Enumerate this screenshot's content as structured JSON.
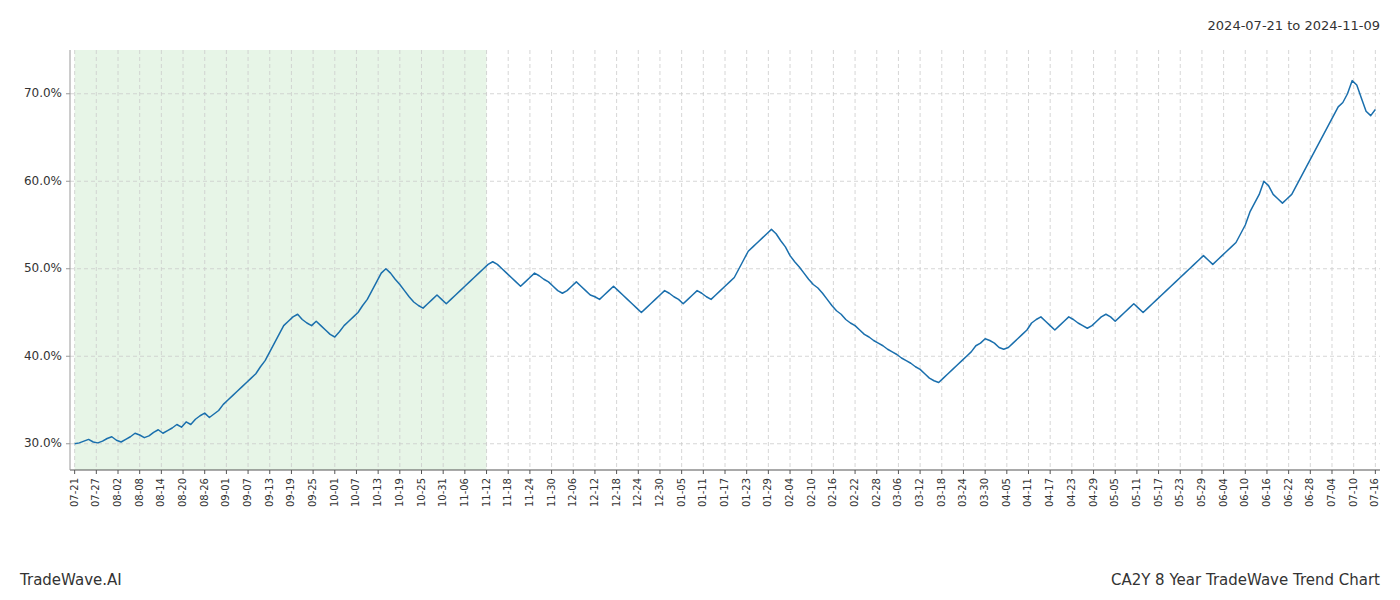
{
  "chart_data": {
    "type": "line",
    "title": "CA2Y 8 Year TradeWave Trend Chart",
    "subtitle": "2024-07-21 to 2024-11-09",
    "annotations": [
      "TradeWave.AI"
    ],
    "color": "#1a6fad",
    "grid": true,
    "shade": {
      "x": [
        0,
        88.66666666666667
      ],
      "color": "#d4ecd4"
    },
    "xlim": [
      -1,
      281
    ],
    "xticks": [
      {
        "value": 0,
        "label": "07-21"
      },
      {
        "value": 4.666666666666667,
        "label": "07-27"
      },
      {
        "value": 9.333333333333334,
        "label": "08-02"
      },
      {
        "value": 14,
        "label": "08-08"
      },
      {
        "value": 18.666666666666668,
        "label": "08-14"
      },
      {
        "value": 23.333333333333332,
        "label": "08-20"
      },
      {
        "value": 28,
        "label": "08-26"
      },
      {
        "value": 32.666666666666664,
        "label": "09-01"
      },
      {
        "value": 37.333333333333336,
        "label": "09-07"
      },
      {
        "value": 42,
        "label": "09-13"
      },
      {
        "value": 46.666666666666664,
        "label": "09-19"
      },
      {
        "value": 51.333333333333336,
        "label": "09-25"
      },
      {
        "value": 56,
        "label": "10-01"
      },
      {
        "value": 60.666666666666664,
        "label": "10-07"
      },
      {
        "value": 65.33333333333333,
        "label": "10-13"
      },
      {
        "value": 70,
        "label": "10-19"
      },
      {
        "value": 74.66666666666667,
        "label": "10-25"
      },
      {
        "value": 79.33333333333333,
        "label": "10-31"
      },
      {
        "value": 84,
        "label": "11-06"
      },
      {
        "value": 88.66666666666667,
        "label": "11-12"
      },
      {
        "value": 93.33333333333333,
        "label": "11-18"
      },
      {
        "value": 98,
        "label": "11-24"
      },
      {
        "value": 102.66666666666667,
        "label": "11-30"
      },
      {
        "value": 107.33333333333333,
        "label": "12-06"
      },
      {
        "value": 112,
        "label": "12-12"
      },
      {
        "value": 116.66666666666667,
        "label": "12-18"
      },
      {
        "value": 121.33333333333333,
        "label": "12-24"
      },
      {
        "value": 126,
        "label": "12-30"
      },
      {
        "value": 130.66666666666666,
        "label": "01-05"
      },
      {
        "value": 135.33333333333334,
        "label": "01-11"
      },
      {
        "value": 140,
        "label": "01-17"
      },
      {
        "value": 144.66666666666666,
        "label": "01-23"
      },
      {
        "value": 149.33333333333334,
        "label": "01-29"
      },
      {
        "value": 154,
        "label": "02-04"
      },
      {
        "value": 158.66666666666666,
        "label": "02-10"
      },
      {
        "value": 163.33333333333334,
        "label": "02-16"
      },
      {
        "value": 168,
        "label": "02-22"
      },
      {
        "value": 172.66666666666666,
        "label": "02-28"
      },
      {
        "value": 177.33333333333334,
        "label": "03-06"
      },
      {
        "value": 182,
        "label": "03-12"
      },
      {
        "value": 186.66666666666666,
        "label": "03-18"
      },
      {
        "value": 191.33333333333334,
        "label": "03-24"
      },
      {
        "value": 196,
        "label": "03-30"
      },
      {
        "value": 200.66666666666666,
        "label": "04-05"
      },
      {
        "value": 205.33333333333334,
        "label": "04-11"
      },
      {
        "value": 210,
        "label": "04-17"
      },
      {
        "value": 214.66666666666666,
        "label": "04-23"
      },
      {
        "value": 219.33333333333334,
        "label": "04-29"
      },
      {
        "value": 224,
        "label": "05-05"
      },
      {
        "value": 228.66666666666666,
        "label": "05-11"
      },
      {
        "value": 233.33333333333334,
        "label": "05-17"
      },
      {
        "value": 238,
        "label": "05-23"
      },
      {
        "value": 242.66666666666666,
        "label": "05-29"
      },
      {
        "value": 247.33333333333334,
        "label": "06-04"
      },
      {
        "value": 252,
        "label": "06-10"
      },
      {
        "value": 256.6666666666667,
        "label": "06-16"
      },
      {
        "value": 261.3333333333333,
        "label": "06-22"
      },
      {
        "value": 266,
        "label": "06-28"
      },
      {
        "value": 270.6666666666667,
        "label": "07-04"
      },
      {
        "value": 275.3333333333333,
        "label": "07-10"
      },
      {
        "value": 280,
        "label": "07-16"
      }
    ],
    "ylim": [
      27.0,
      75.0
    ],
    "yticks": [
      {
        "value": 30.0,
        "label": "30.0%"
      },
      {
        "value": 40.0,
        "label": "40.0%"
      },
      {
        "value": 50.0,
        "label": "50.0%"
      },
      {
        "value": 60.0,
        "label": "60.0%"
      },
      {
        "value": 70.0,
        "label": "70.0%"
      }
    ],
    "values": [
      30.0,
      30.1,
      30.3,
      30.5,
      30.2,
      30.1,
      30.3,
      30.6,
      30.8,
      30.4,
      30.2,
      30.5,
      30.8,
      31.2,
      31.0,
      30.7,
      30.9,
      31.3,
      31.6,
      31.2,
      31.5,
      31.8,
      32.2,
      31.9,
      32.5,
      32.2,
      32.8,
      33.2,
      33.5,
      33.0,
      33.4,
      33.8,
      34.5,
      35.0,
      35.5,
      36.0,
      36.5,
      37.0,
      37.5,
      38.0,
      38.8,
      39.5,
      40.5,
      41.5,
      42.5,
      43.5,
      44.0,
      44.5,
      44.8,
      44.2,
      43.8,
      43.5,
      44.0,
      43.5,
      43.0,
      42.5,
      42.2,
      42.8,
      43.5,
      44.0,
      44.5,
      45.0,
      45.8,
      46.5,
      47.5,
      48.5,
      49.5,
      50.0,
      49.5,
      48.8,
      48.2,
      47.5,
      46.8,
      46.2,
      45.8,
      45.5,
      46.0,
      46.5,
      47.0,
      46.5,
      46.0,
      46.5,
      47.0,
      47.5,
      48.0,
      48.5,
      49.0,
      49.5,
      50.0,
      50.5,
      50.8,
      50.5,
      50.0,
      49.5,
      49.0,
      48.5,
      48.0,
      48.5,
      49.0,
      49.5,
      49.2,
      48.8,
      48.5,
      48.0,
      47.5,
      47.2,
      47.5,
      48.0,
      48.5,
      48.0,
      47.5,
      47.0,
      46.8,
      46.5,
      47.0,
      47.5,
      48.0,
      47.5,
      47.0,
      46.5,
      46.0,
      45.5,
      45.0,
      45.5,
      46.0,
      46.5,
      47.0,
      47.5,
      47.2,
      46.8,
      46.5,
      46.0,
      46.5,
      47.0,
      47.5,
      47.2,
      46.8,
      46.5,
      47.0,
      47.5,
      48.0,
      48.5,
      49.0,
      50.0,
      51.0,
      52.0,
      52.5,
      53.0,
      53.5,
      54.0,
      54.5,
      54.0,
      53.2,
      52.5,
      51.5,
      50.8,
      50.2,
      49.5,
      48.8,
      48.2,
      47.8,
      47.2,
      46.5,
      45.8,
      45.2,
      44.8,
      44.2,
      43.8,
      43.5,
      43.0,
      42.5,
      42.2,
      41.8,
      41.5,
      41.2,
      40.8,
      40.5,
      40.2,
      39.8,
      39.5,
      39.2,
      38.8,
      38.5,
      38.0,
      37.5,
      37.2,
      37.0,
      37.5,
      38.0,
      38.5,
      39.0,
      39.5,
      40.0,
      40.5,
      41.2,
      41.5,
      42.0,
      41.8,
      41.5,
      41.0,
      40.8,
      41.0,
      41.5,
      42.0,
      42.5,
      43.0,
      43.8,
      44.2,
      44.5,
      44.0,
      43.5,
      43.0,
      43.5,
      44.0,
      44.5,
      44.2,
      43.8,
      43.5,
      43.2,
      43.5,
      44.0,
      44.5,
      44.8,
      44.5,
      44.0,
      44.5,
      45.0,
      45.5,
      46.0,
      45.5,
      45.0,
      45.5,
      46.0,
      46.5,
      47.0,
      47.5,
      48.0,
      48.5,
      49.0,
      49.5,
      50.0,
      50.5,
      51.0,
      51.5,
      51.0,
      50.5,
      51.0,
      51.5,
      52.0,
      52.5,
      53.0,
      54.0,
      55.0,
      56.5,
      57.5,
      58.5,
      60.0,
      59.5,
      58.5,
      58.0,
      57.5,
      58.0,
      58.5,
      59.5,
      60.5,
      61.5,
      62.5,
      63.5,
      64.5,
      65.5,
      66.5,
      67.5,
      68.5,
      69.0,
      70.0,
      71.5,
      71.0,
      69.5,
      68.0,
      67.5,
      68.2
    ]
  }
}
